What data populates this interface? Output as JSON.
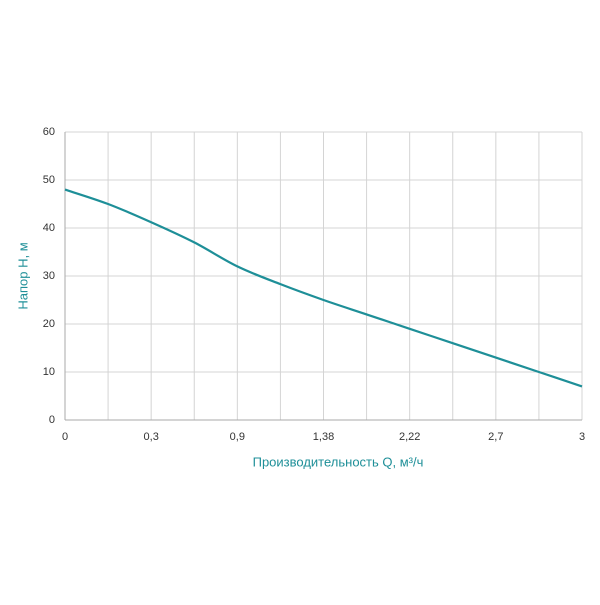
{
  "chart_data": {
    "type": "line",
    "x_label": "Производительность Q, м³/ч",
    "y_label": "Напор Н, м",
    "categories": [
      "0",
      null,
      "0,3",
      null,
      "0,9",
      null,
      "1,38",
      null,
      "2,22",
      null,
      "2,7",
      null,
      "3"
    ],
    "values": [
      48,
      45,
      41.2,
      37,
      32,
      28.3,
      25,
      22,
      19,
      16,
      13,
      10,
      7
    ],
    "color": "#1e8f98",
    "ylim": [
      0,
      60
    ],
    "yticks": [
      0,
      10,
      20,
      30,
      40,
      50,
      60
    ],
    "grid": true
  }
}
